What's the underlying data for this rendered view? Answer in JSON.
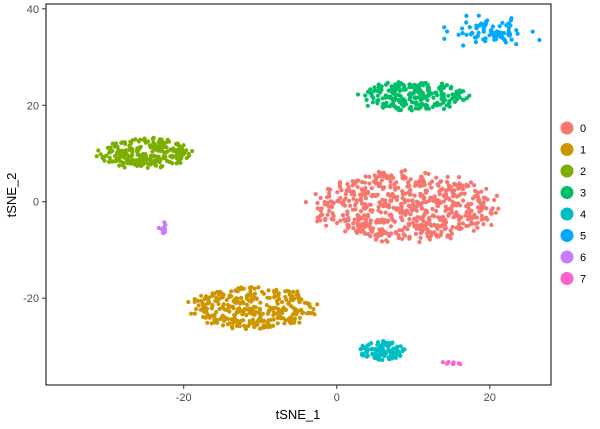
{
  "chart_data": {
    "type": "scatter",
    "title": "",
    "xlabel": "tSNE_1",
    "ylabel": "tSNE_2",
    "xlim": [
      -38,
      28
    ],
    "ylim": [
      -38,
      41
    ],
    "x_ticks": [
      -20,
      0,
      20
    ],
    "x_tick_labels": [
      "-20",
      "0",
      "20"
    ],
    "y_ticks": [
      -20,
      0,
      20,
      40
    ],
    "y_tick_labels": [
      "-20",
      "0",
      "20",
      "40"
    ],
    "grid": false,
    "legend_position": "right",
    "series": [
      {
        "name": "0",
        "color": "#F8766D",
        "center": [
          9,
          -1
        ],
        "spread": [
          11,
          6.5
        ],
        "n": 650
      },
      {
        "name": "1",
        "color": "#CD9600",
        "center": [
          -11,
          -22
        ],
        "spread": [
          7.5,
          3.8
        ],
        "n": 330
      },
      {
        "name": "2",
        "color": "#7CAE00",
        "center": [
          -25,
          10
        ],
        "spread": [
          5.5,
          2.8
        ],
        "n": 230
      },
      {
        "name": "3",
        "color": "#00BE67",
        "center": [
          10,
          22
        ],
        "spread": [
          6.5,
          2.8
        ],
        "n": 230
      },
      {
        "name": "4",
        "color": "#00BFC4",
        "center": [
          6,
          -31
        ],
        "spread": [
          2.8,
          1.8
        ],
        "n": 110
      },
      {
        "name": "5",
        "color": "#00A9FF",
        "center": [
          20,
          35
        ],
        "spread": [
          2.5,
          1.3
        ],
        "n": 80
      },
      {
        "name": "6",
        "color": "#C77CFF",
        "center": [
          -22.5,
          -5.5
        ],
        "spread": [
          0.3,
          0.9
        ],
        "n": 12
      },
      {
        "name": "7",
        "color": "#FF61CC",
        "center": [
          14.5,
          -33.5
        ],
        "spread": [
          0.6,
          0.15
        ],
        "n": 8
      }
    ]
  }
}
